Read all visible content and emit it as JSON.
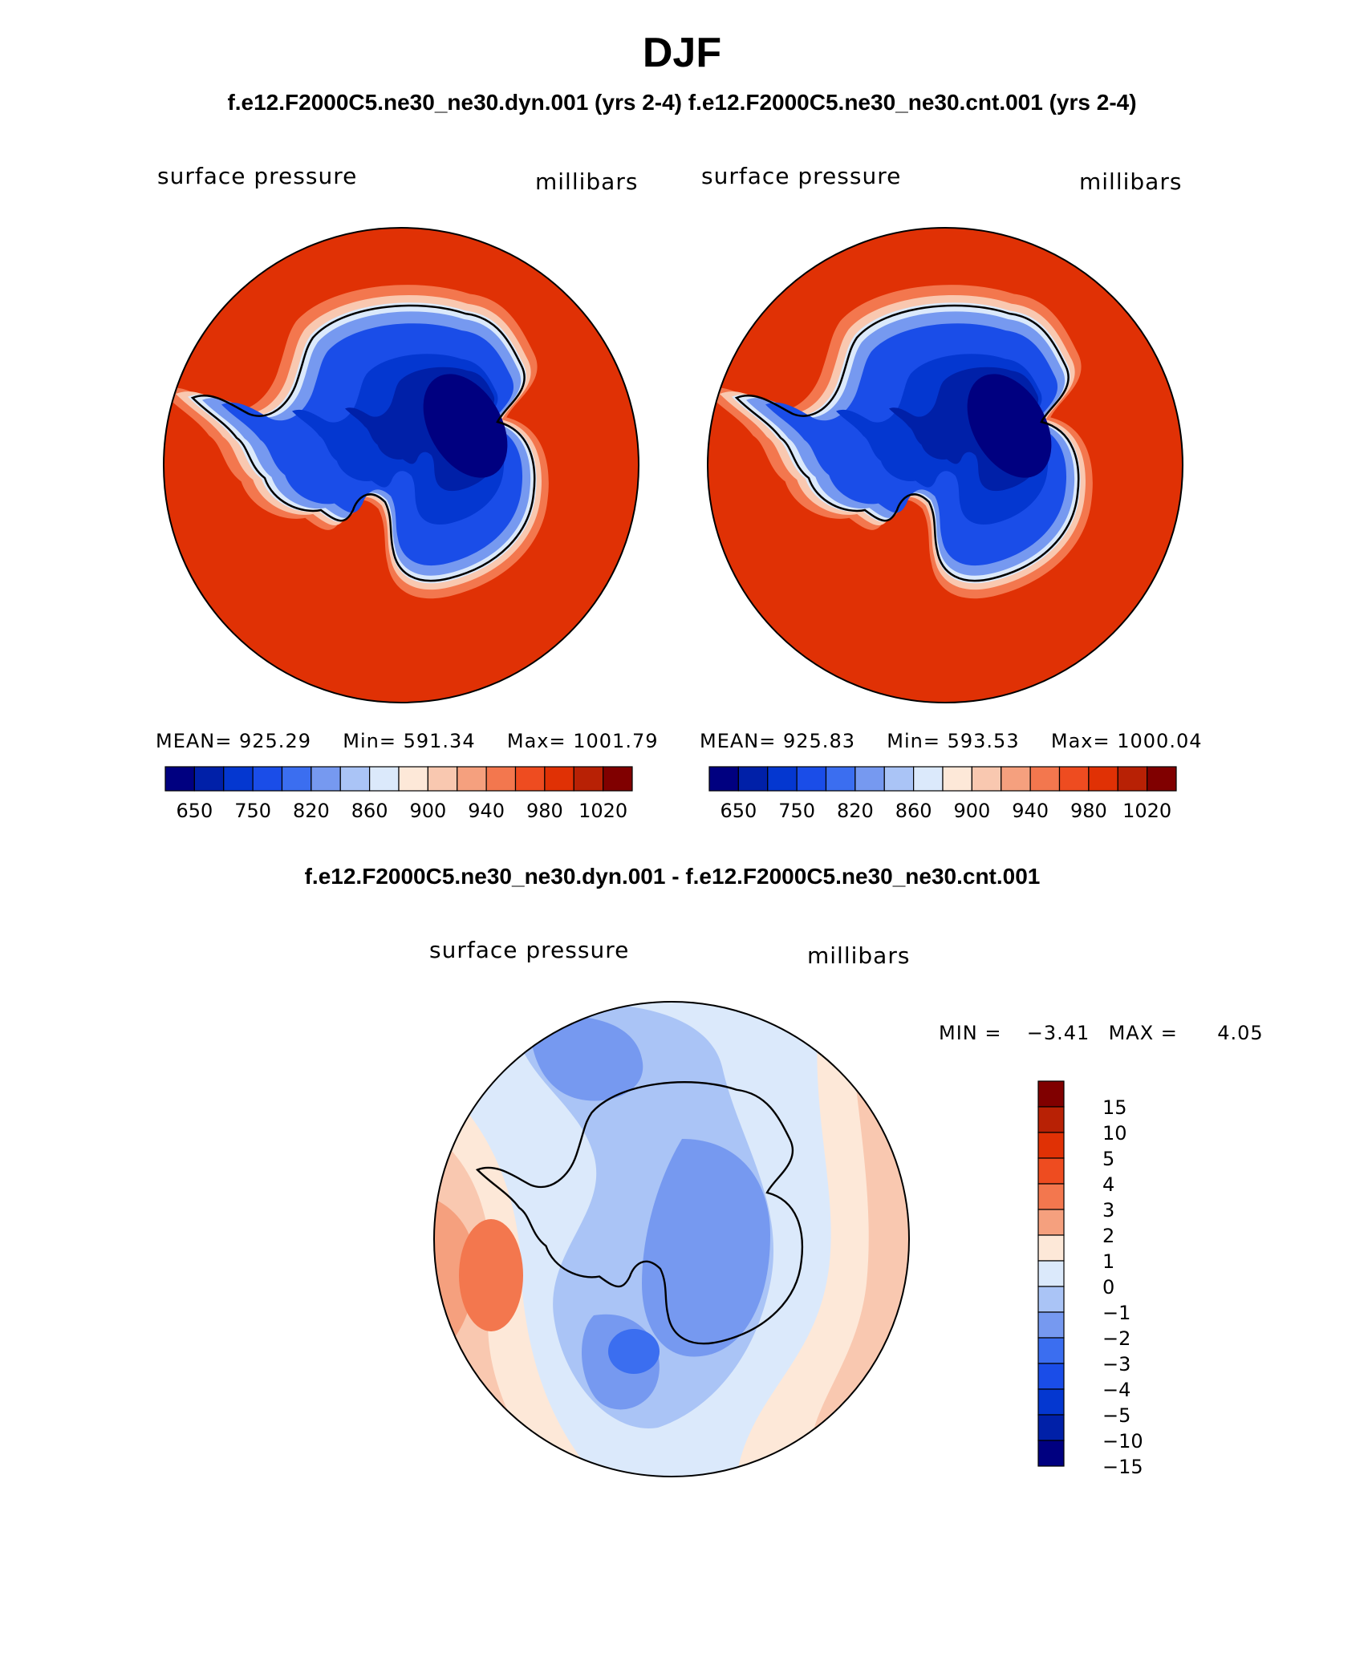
{
  "page": {
    "season": "DJF",
    "header": "f.e12.F2000C5.ne30_ne30.dyn.001 (yrs 2-4)  f.e12.F2000C5.ne30_ne30.cnt.001 (yrs 2-4)",
    "diff_header": "f.e12.F2000C5.ne30_ne30.dyn.001 - f.e12.F2000C5.ne30_ne30.cnt.001"
  },
  "chart_data": [
    {
      "type": "heatmap",
      "projection": "south-polar-stereographic",
      "case": "f.e12.F2000C5.ne30_ne30.dyn.001 (yrs 2-4)",
      "variable": "surface pressure",
      "units": "millibars",
      "stats": {
        "mean_label": "MEAN=",
        "mean": "925.29",
        "min_label": "Min=",
        "min": "591.34",
        "max_label": "Max=",
        "max": "1001.79"
      },
      "colorbar_ticks": [
        "650",
        "750",
        "820",
        "860",
        "900",
        "940",
        "980",
        "1020"
      ],
      "colorbar_colors": [
        "#000080",
        "#0020a8",
        "#0437d0",
        "#1a4de8",
        "#3b6ef0",
        "#7699f0",
        "#aac4f6",
        "#dbe9fb",
        "#fde8d8",
        "#f9c8b0",
        "#f5a07e",
        "#f3774e",
        "#ee4c20",
        "#e03105",
        "#b82105",
        "#800000"
      ]
    },
    {
      "type": "heatmap",
      "projection": "south-polar-stereographic",
      "case": "f.e12.F2000C5.ne30_ne30.cnt.001 (yrs 2-4)",
      "variable": "surface pressure",
      "units": "millibars",
      "stats": {
        "mean_label": "MEAN=",
        "mean": "925.83",
        "min_label": "Min=",
        "min": "593.53",
        "max_label": "Max=",
        "max": "1000.04"
      },
      "colorbar_ticks": [
        "650",
        "750",
        "820",
        "860",
        "900",
        "940",
        "980",
        "1020"
      ],
      "colorbar_colors": [
        "#000080",
        "#0020a8",
        "#0437d0",
        "#1a4de8",
        "#3b6ef0",
        "#7699f0",
        "#aac4f6",
        "#dbe9fb",
        "#fde8d8",
        "#f9c8b0",
        "#f5a07e",
        "#f3774e",
        "#ee4c20",
        "#e03105",
        "#b82105",
        "#800000"
      ]
    },
    {
      "type": "heatmap",
      "projection": "south-polar-stereographic",
      "case": "f.e12.F2000C5.ne30_ne30.dyn.001 - f.e12.F2000C5.ne30_ne30.cnt.001",
      "variable": "surface pressure",
      "units": "millibars",
      "stats": {
        "min_label": "MIN =",
        "min": "−3.41",
        "max_label": "MAX =",
        "max": "4.05"
      },
      "colorbar_ticks": [
        "15",
        "10",
        "5",
        "4",
        "3",
        "2",
        "1",
        "0",
        "−1",
        "−2",
        "−3",
        "−4",
        "−5",
        "−10",
        "−15"
      ],
      "colorbar_colors": [
        "#800000",
        "#b82105",
        "#e03105",
        "#ee4c20",
        "#f3774e",
        "#f5a07e",
        "#fde8d8",
        "#dbe9fb",
        "#aac4f6",
        "#7699f0",
        "#3b6ef0",
        "#1a4de8",
        "#0437d0",
        "#0020a8",
        "#000080"
      ]
    }
  ]
}
